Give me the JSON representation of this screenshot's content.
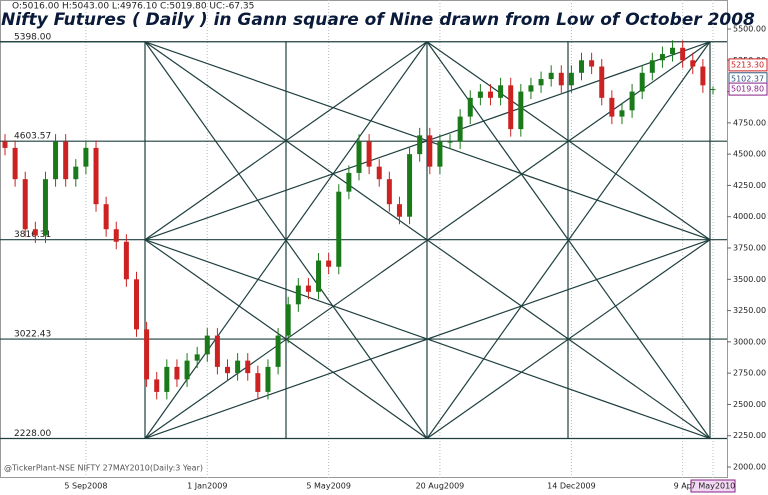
{
  "chart_data": {
    "type": "candlestick",
    "title": "Nifty Futures ( Daily ) in Gann square of Nine drawn from Low of October 2008",
    "ohlc_readout": "O:5016.00 H:5043.00 L:4976.10 C:5019.80 UC:-67.35",
    "footer": "@TickerPlant-NSE NIFTY 27MAY2010(Daily:3 Year)",
    "up_color": "#1a7a1a",
    "down_color": "#cc2222",
    "grid": true,
    "open": [
      4600,
      4550,
      4300,
      3900,
      3850,
      4300,
      4600,
      4300,
      4400,
      4550,
      4100,
      3900,
      3800,
      3500,
      3100,
      2700,
      2600,
      2800,
      2700,
      2850,
      2900,
      3050,
      2800,
      2750,
      2850,
      2750,
      2600,
      2800,
      3050,
      3300,
      3450,
      3400,
      3650,
      3600,
      4200,
      4350,
      4600,
      4400,
      4300,
      4100,
      4000,
      4500,
      4650,
      4400,
      4600,
      4600,
      4800,
      4950,
      5000,
      4950,
      5050,
      4700,
      5000,
      5050,
      5100,
      5150,
      5050,
      5150,
      5250,
      5200,
      4950,
      4800,
      4850,
      5000,
      5150,
      5250,
      5300,
      5350,
      5250,
      5200,
      5016
    ],
    "high": [
      4660,
      4610,
      4360,
      3960,
      4360,
      4660,
      4660,
      4460,
      4610,
      4610,
      4160,
      3960,
      3860,
      3560,
      3160,
      2760,
      2860,
      2860,
      2910,
      2960,
      3110,
      3110,
      2860,
      2910,
      2910,
      2810,
      2860,
      3110,
      3360,
      3510,
      3510,
      3710,
      3710,
      4260,
      4410,
      4660,
      4660,
      4460,
      4360,
      4160,
      4560,
      4710,
      4710,
      4660,
      4660,
      4860,
      5010,
      5060,
      5060,
      5110,
      5110,
      5060,
      5110,
      5160,
      5210,
      5210,
      5210,
      5310,
      5310,
      5260,
      5010,
      4910,
      5060,
      5210,
      5310,
      5360,
      5410,
      5410,
      5310,
      5260,
      5043
    ],
    "low": [
      4490,
      4240,
      3840,
      3790,
      3790,
      4240,
      4240,
      4240,
      4340,
      4040,
      3840,
      3740,
      3440,
      3040,
      2640,
      2540,
      2540,
      2640,
      2640,
      2790,
      2840,
      2740,
      2690,
      2690,
      2690,
      2540,
      2540,
      2740,
      2990,
      3240,
      3340,
      3340,
      3540,
      3540,
      4140,
      4290,
      4340,
      4240,
      4040,
      3940,
      3940,
      4440,
      4340,
      4340,
      4540,
      4540,
      4740,
      4890,
      4890,
      4890,
      4640,
      4640,
      4940,
      4990,
      5040,
      4990,
      4990,
      5090,
      5140,
      4890,
      4740,
      4740,
      4790,
      4940,
      5090,
      5190,
      5240,
      5190,
      5140,
      4990,
      4976.1
    ],
    "close": [
      4550,
      4300,
      3900,
      3850,
      4300,
      4600,
      4300,
      4400,
      4550,
      4100,
      3900,
      3800,
      3500,
      3100,
      2700,
      2600,
      2800,
      2700,
      2850,
      2900,
      3050,
      2800,
      2750,
      2850,
      2750,
      2600,
      2800,
      3050,
      3300,
      3450,
      3400,
      3650,
      3600,
      4200,
      4350,
      4600,
      4400,
      4300,
      4100,
      4000,
      4500,
      4650,
      4400,
      4600,
      4600,
      4800,
      4950,
      5000,
      4950,
      5050,
      4700,
      5000,
      5050,
      5100,
      5150,
      5050,
      5150,
      5250,
      5200,
      4950,
      4800,
      4850,
      5000,
      5150,
      5250,
      5300,
      5350,
      5250,
      5200,
      5050,
      5019.8
    ],
    "xticks": [
      {
        "value": 8,
        "label": "5 Sep2008"
      },
      {
        "value": 20,
        "label": "1 Jan2009"
      },
      {
        "value": 32,
        "label": "5 May2009"
      },
      {
        "value": 43,
        "label": "20 Aug2009"
      },
      {
        "value": 56,
        "label": "14 Dec2009"
      },
      {
        "value": 67,
        "label": "9 Ap"
      },
      {
        "value": 70,
        "label": "7 May2010"
      }
    ],
    "ylim": [
      2000,
      5500
    ],
    "yticks": [
      {
        "value": 2000,
        "label": "2000.00"
      },
      {
        "value": 2250,
        "label": "2250.00"
      },
      {
        "value": 2500,
        "label": "2500.00"
      },
      {
        "value": 2750,
        "label": "2750.00"
      },
      {
        "value": 3000,
        "label": "3000.00"
      },
      {
        "value": 3250,
        "label": "3250.00"
      },
      {
        "value": 3500,
        "label": "3500.00"
      },
      {
        "value": 3750,
        "label": "3750.00"
      },
      {
        "value": 4000,
        "label": "4000.00"
      },
      {
        "value": 4250,
        "label": "4250.00"
      },
      {
        "value": 4500,
        "label": "4500.00"
      },
      {
        "value": 4750,
        "label": "4750.00"
      },
      {
        "value": 5000,
        "label": "5000.00"
      },
      {
        "value": 5250,
        "label": "5250.00"
      },
      {
        "value": 5500,
        "label": "5500.00"
      }
    ],
    "gann_levels": [
      {
        "value": 5398,
        "label": "5398.00"
      },
      {
        "value": 4603.57,
        "label": "4603.57"
      },
      {
        "value": 3816.31,
        "label": "3816.31"
      },
      {
        "value": 3022.43,
        "label": "3022.43"
      },
      {
        "value": 2228,
        "label": "2228.00"
      }
    ],
    "price_labels": [
      {
        "value": 5213.3,
        "label": "5213.30",
        "color": "#cc2222"
      },
      {
        "value": 5102.37,
        "label": "5102.37",
        "color": "#33557a"
      },
      {
        "value": 5019.8,
        "label": "5019.80",
        "color": "#882288"
      }
    ]
  }
}
